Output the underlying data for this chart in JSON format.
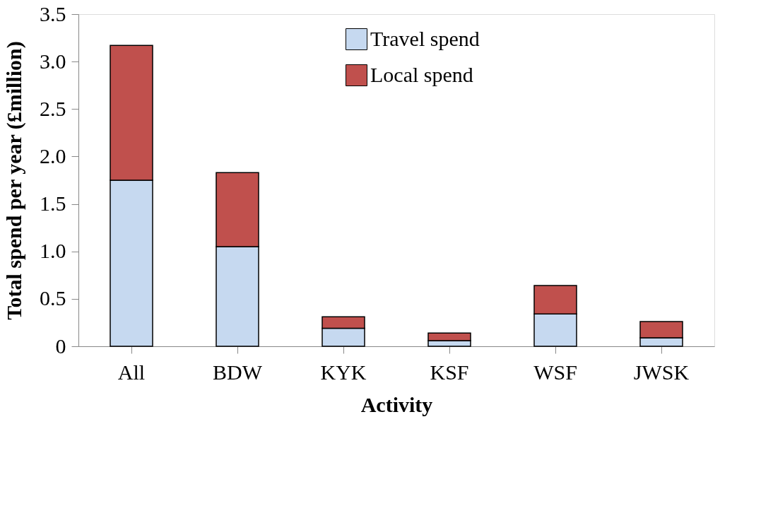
{
  "chart_data": {
    "type": "bar",
    "stacked": true,
    "xlabel": "Activity",
    "ylabel": "Total spend per year (£million)",
    "categories": [
      "All",
      "BDW",
      "KYK",
      "KSF",
      "WSF",
      "JWSK"
    ],
    "series": [
      {
        "name": "Travel spend",
        "color": "#c6d9f0",
        "values": [
          1.75,
          1.05,
          0.19,
          0.06,
          0.34,
          0.09
        ]
      },
      {
        "name": "Local spend",
        "color": "#c0504d",
        "values": [
          1.42,
          0.78,
          0.12,
          0.08,
          0.3,
          0.17
        ]
      }
    ],
    "ylim": [
      0,
      3.5
    ],
    "yticks": [
      {
        "value": 0,
        "label": "0"
      },
      {
        "value": 0.5,
        "label": "0.5"
      },
      {
        "value": 1,
        "label": "1.0"
      },
      {
        "value": 1.5,
        "label": "1.5"
      },
      {
        "value": 2,
        "label": "2.0"
      },
      {
        "value": 2.5,
        "label": "2.5"
      },
      {
        "value": 3,
        "label": "3.0"
      },
      {
        "value": 3.5,
        "label": "3.5"
      }
    ],
    "legend": "top right",
    "grid": false
  }
}
